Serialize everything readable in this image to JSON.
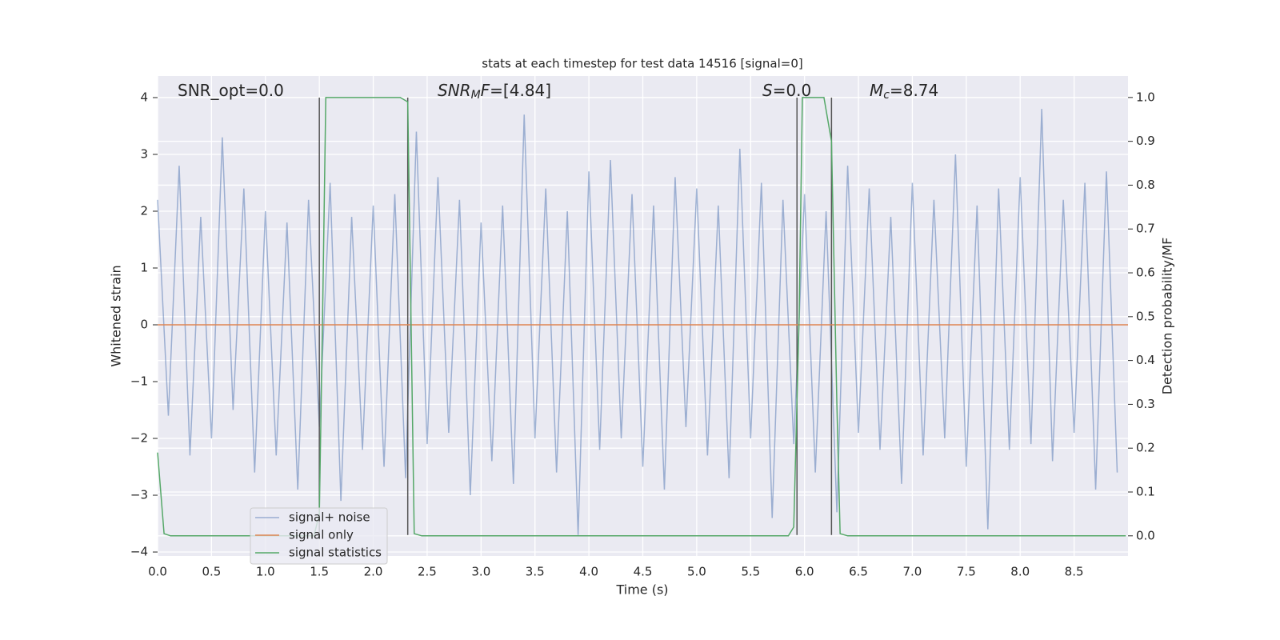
{
  "chart_data": {
    "type": "line",
    "title": "stats at each timestep for test data 14516 [signal=0]",
    "xlabel": "Time (s)",
    "ylabel": "Whitened strain",
    "y2label": "Detection probability/MF",
    "xlim": [
      0,
      9
    ],
    "ylim": [
      -4.07,
      4.38
    ],
    "y2lim": [
      -0.046,
      1.049
    ],
    "xticks": [
      {
        "value": 0,
        "label": "0.0"
      },
      {
        "value": 0.5,
        "label": "0.5"
      },
      {
        "value": 1,
        "label": "1.0"
      },
      {
        "value": 1.5,
        "label": "1.5"
      },
      {
        "value": 2,
        "label": "2.0"
      },
      {
        "value": 2.5,
        "label": "2.5"
      },
      {
        "value": 3,
        "label": "3.0"
      },
      {
        "value": 3.5,
        "label": "3.5"
      },
      {
        "value": 4,
        "label": "4.0"
      },
      {
        "value": 4.5,
        "label": "4.5"
      },
      {
        "value": 5,
        "label": "5.0"
      },
      {
        "value": 5.5,
        "label": "5.5"
      },
      {
        "value": 6,
        "label": "6.0"
      },
      {
        "value": 6.5,
        "label": "6.5"
      },
      {
        "value": 7,
        "label": "7.0"
      },
      {
        "value": 7.5,
        "label": "7.5"
      },
      {
        "value": 8,
        "label": "8.0"
      },
      {
        "value": 8.5,
        "label": "8.5"
      }
    ],
    "yticks": [
      {
        "value": -4,
        "label": "−4"
      },
      {
        "value": -3,
        "label": "−3"
      },
      {
        "value": -2,
        "label": "−2"
      },
      {
        "value": -1,
        "label": "−1"
      },
      0,
      1,
      2,
      3,
      4
    ],
    "y2ticks": [
      {
        "value": 0,
        "label": "0.0"
      },
      {
        "value": 0.1,
        "label": "0.1"
      },
      {
        "value": 0.2,
        "label": "0.2"
      },
      {
        "value": 0.3,
        "label": "0.3"
      },
      {
        "value": 0.4,
        "label": "0.4"
      },
      {
        "value": 0.5,
        "label": "0.5"
      },
      {
        "value": 0.6,
        "label": "0.6"
      },
      {
        "value": 0.7,
        "label": "0.7"
      },
      {
        "value": 0.8,
        "label": "0.8"
      },
      {
        "value": 0.9,
        "label": "0.9"
      },
      {
        "value": 1,
        "label": "1.0"
      }
    ],
    "grid": true,
    "legend": "lower left",
    "series": [
      {
        "name": "signal+ noise",
        "color": "#4c72b0",
        "opacity": 0.5,
        "x": [
          0,
          0.1,
          0.2,
          0.3,
          0.4,
          0.5,
          0.6,
          0.7,
          0.8,
          0.9,
          1,
          1.1,
          1.2,
          1.3,
          1.4,
          1.5,
          1.6,
          1.7,
          1.8,
          1.9,
          2,
          2.1,
          2.2,
          2.3,
          2.4,
          2.5,
          2.6,
          2.7,
          2.8,
          2.9,
          3,
          3.1,
          3.2,
          3.3,
          3.4,
          3.5,
          3.6,
          3.7,
          3.8,
          3.9,
          4,
          4.1,
          4.2,
          4.3,
          4.4,
          4.5,
          4.6,
          4.7,
          4.8,
          4.9,
          5,
          5.1,
          5.2,
          5.3,
          5.4,
          5.5,
          5.6,
          5.7,
          5.8,
          5.9,
          6,
          6.1,
          6.2,
          6.3,
          6.4,
          6.5,
          6.6,
          6.7,
          6.8,
          6.9,
          7,
          7.1,
          7.2,
          7.3,
          7.4,
          7.5,
          7.6,
          7.7,
          7.8,
          7.9,
          8,
          8.1,
          8.2,
          8.3,
          8.4,
          8.5,
          8.6,
          8.7,
          8.8,
          8.9
        ],
        "values": [
          2.2,
          -1.6,
          2.8,
          -2.3,
          1.9,
          -2.0,
          3.3,
          -1.5,
          2.4,
          -2.6,
          2.0,
          -2.3,
          1.8,
          -2.9,
          2.2,
          -1.8,
          2.5,
          -3.1,
          1.9,
          -2.2,
          2.1,
          -2.5,
          2.3,
          -2.7,
          3.4,
          -2.1,
          2.6,
          -1.9,
          2.2,
          -3.0,
          1.8,
          -2.4,
          2.1,
          -2.8,
          3.7,
          -2.0,
          2.4,
          -2.6,
          2.0,
          -3.7,
          2.7,
          -2.2,
          2.9,
          -2.0,
          2.3,
          -2.5,
          2.1,
          -2.9,
          2.6,
          -1.8,
          2.4,
          -2.3,
          2.1,
          -2.7,
          3.1,
          -2.0,
          2.5,
          -3.4,
          2.2,
          -2.1,
          2.3,
          -2.6,
          2.0,
          -3.3,
          2.8,
          -1.9,
          2.4,
          -2.2,
          1.9,
          -2.8,
          2.5,
          -2.3,
          2.2,
          -2.0,
          3.0,
          -2.5,
          2.1,
          -3.6,
          2.4,
          -2.2,
          2.6,
          -2.1,
          3.8,
          -2.4,
          2.2,
          -1.9,
          2.5,
          -2.9,
          2.7,
          -2.6
        ]
      },
      {
        "name": "signal only",
        "color": "#dd8452",
        "x": [
          0,
          9
        ],
        "values": [
          0,
          0
        ]
      },
      {
        "name": "signal statistics",
        "color": "#55a868",
        "axis": "y2",
        "x": [
          0,
          0.06,
          0.12,
          1.45,
          1.5,
          1.53,
          1.56,
          2.25,
          2.32,
          2.35,
          2.38,
          2.45,
          5.85,
          5.9,
          5.95,
          5.98,
          6.18,
          6.25,
          6.3,
          6.33,
          6.4,
          8.98
        ],
        "values": [
          0.19,
          0.005,
          0,
          0,
          0.05,
          0.5,
          1.0,
          1.0,
          0.99,
          0.5,
          0.005,
          0,
          0,
          0.02,
          0.5,
          1.0,
          1.0,
          0.9,
          0.3,
          0.005,
          0,
          0
        ]
      }
    ],
    "vlines": {
      "color": "#555555",
      "x": [
        1.5,
        2.32,
        5.93,
        6.25
      ],
      "range": [
        -3.7,
        4
      ]
    },
    "annotations": [
      [
        {
          "t": "SNR_opt=0.0",
          "s": "n"
        }
      ],
      [
        {
          "t": "SNR",
          "s": "i"
        },
        {
          "t": "M",
          "s": "sub"
        },
        {
          "t": "F",
          "s": "i"
        },
        {
          "t": "=[4.84]",
          "s": "n"
        }
      ],
      [
        {
          "t": "S",
          "s": "i"
        },
        {
          "t": "=0.0",
          "s": "n"
        }
      ],
      [
        {
          "t": "M",
          "s": "i"
        },
        {
          "t": "c",
          "s": "sub"
        },
        {
          "t": "=8.74",
          "s": "n"
        }
      ]
    ]
  }
}
